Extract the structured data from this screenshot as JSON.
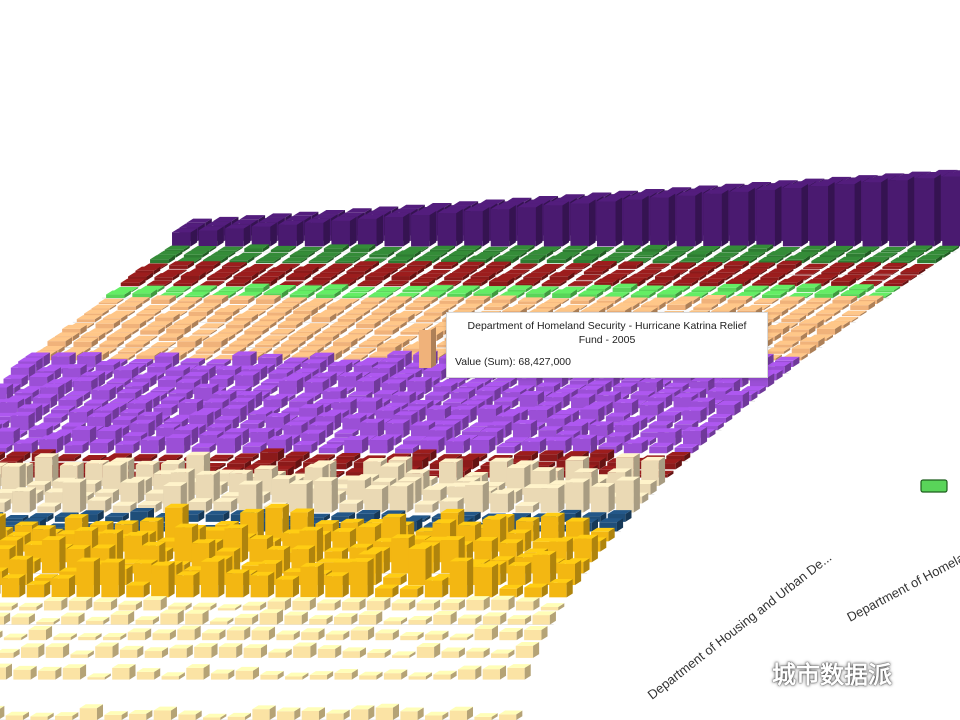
{
  "chart_data": {
    "type": "bar",
    "variant": "3d-bar-grid",
    "categories_visible": [
      "Department of Housing and Urban De...",
      "Department of Homeland"
    ],
    "series_colors": [
      "#f5c89a",
      "#fbe3a4",
      "#f3b712",
      "#1f4e79",
      "#ead9b4",
      "#8b1a1a",
      "#9b4fd6",
      "#f0b27a",
      "#59d459",
      "#2e7d32",
      "#4a1a70"
    ],
    "tooltip": {
      "title": "Department of Homeland Security - Hurricane Katrina Relief Fund - 2005",
      "label": "Value (Sum)",
      "value": "68,427,000",
      "line": "Value (Sum): 68,427,000"
    }
  },
  "watermark": {
    "text": "城市数据派"
  }
}
